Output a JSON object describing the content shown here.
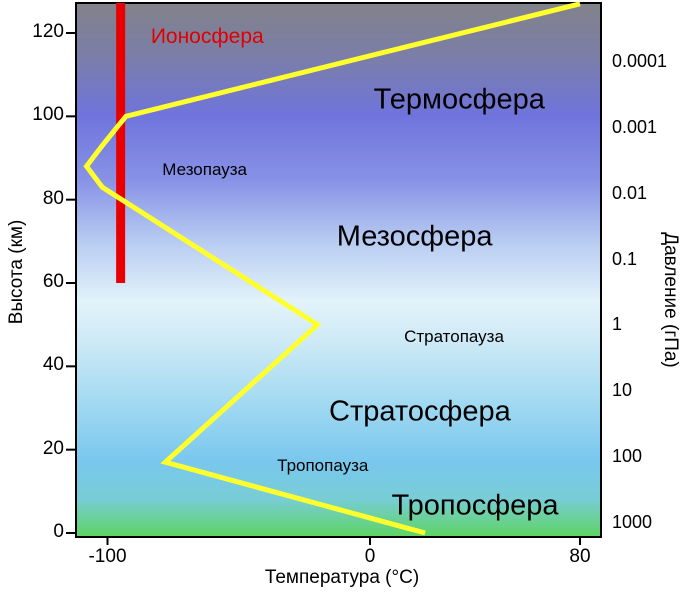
{
  "figure": {
    "x_axis_title": "Температура (°C)",
    "y_left_title": "Высота (км)",
    "y_right_title": "Давление (гПа)"
  },
  "axes": {
    "y_left_ticks": [
      "120",
      "100",
      "80",
      "60",
      "40",
      "20",
      "0"
    ],
    "y_right_ticks": [
      "0.0001",
      "0.001",
      "0.01",
      "0.1",
      "1",
      "10",
      "100",
      "1000"
    ],
    "x_ticks": [
      "-100",
      "0",
      "80"
    ]
  },
  "chart_data": {
    "type": "line",
    "title": "",
    "xlabel": "Температура (°C)",
    "ylabel_left": "Высота (км)",
    "ylabel_right": "Давление (гПа)",
    "xlim": [
      -130,
      88
    ],
    "ylim": [
      0,
      128
    ],
    "x_ticks": [
      -100,
      0,
      80
    ],
    "y_ticks": [
      120,
      100,
      80,
      60,
      40,
      20,
      0
    ],
    "pressure_ticks": [
      0.0001,
      0.001,
      0.01,
      0.1,
      1,
      10,
      100,
      1000
    ],
    "grid": false,
    "series": [
      {
        "name": "temperature-profile",
        "color": "#ffff2e",
        "points": [
          {
            "t": 21,
            "km": 0
          },
          {
            "t": -78,
            "km": 17
          },
          {
            "t": -20,
            "km": 50
          },
          {
            "t": -102,
            "km": 83
          },
          {
            "t": -108,
            "km": 88
          },
          {
            "t": -102,
            "km": 93
          },
          {
            "t": -93,
            "km": 100
          },
          {
            "t": 80,
            "km": 127
          }
        ]
      },
      {
        "name": "ionosphere-extent",
        "color": "#e80000",
        "points": [
          {
            "t": -95,
            "km": 60
          },
          {
            "t": -95,
            "km": 128
          }
        ]
      }
    ],
    "region_labels": [
      {
        "text": "Ионосфера",
        "size": "medium",
        "color": "#e00000",
        "t": -62,
        "km": 119
      },
      {
        "text": "Термосфера",
        "size": "large",
        "color": "#000000",
        "t": 34,
        "km": 104
      },
      {
        "text": "Мезопауза",
        "size": "small",
        "color": "#000000",
        "t": -63,
        "km": 87
      },
      {
        "text": "Мезосфера",
        "size": "large",
        "color": "#000000",
        "t": 17,
        "km": 71
      },
      {
        "text": "Стратопауза",
        "size": "small",
        "color": "#000000",
        "t": 32,
        "km": 47
      },
      {
        "text": "Стратосфера",
        "size": "large",
        "color": "#000000",
        "t": 19,
        "km": 29
      },
      {
        "text": "Тропопауза",
        "size": "small",
        "color": "#000000",
        "t": -18,
        "km": 16
      },
      {
        "text": "Тропосфера",
        "size": "large",
        "color": "#000000",
        "t": 40,
        "km": 6.5
      }
    ]
  }
}
